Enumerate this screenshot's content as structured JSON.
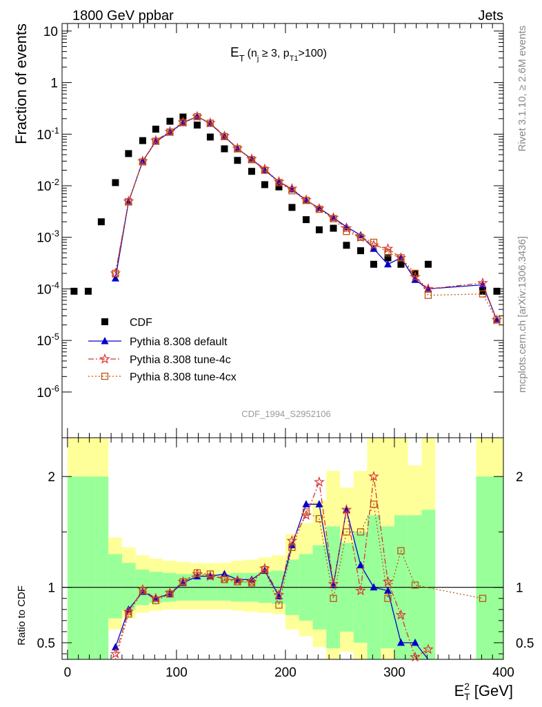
{
  "header": {
    "left": "1800 GeV ppbar",
    "right": "Jets"
  },
  "side": {
    "top": "Rivet 3.1.10, ≥ 2.6M events",
    "bottom": "mcplots.cern.ch [arXiv:1306.3436]"
  },
  "analysis_id": "CDF_1994_S2952106",
  "colors": {
    "cdf": "#000000",
    "default": "#0000cc",
    "tune4c": "#dd3333",
    "tune4cx": "#bb5511",
    "band_inner": "#99ff99",
    "band_outer": "#ffff99"
  },
  "chart_data": [
    {
      "type": "scatter",
      "panel": "main",
      "title": "E_T (n_j ≥ 3, p_T1 >100)",
      "title_parts": {
        "E": "E",
        "T": "T",
        "open": "(n",
        "j": "j",
        "mid": " ≥ 3, p",
        "T1": "T1",
        "close": ">100)"
      },
      "xlabel": "",
      "ylabel": "Fraction of events",
      "yscale": "log",
      "xlim": [
        -5,
        400
      ],
      "ylim": [
        1.3e-07,
        14
      ],
      "ytick_labels": [
        "10^-6",
        "10^-5",
        "10^-4",
        "10^-3",
        "10^-2",
        "10^-1",
        "1",
        "10"
      ],
      "legend_position": "lower-left",
      "series": [
        {
          "name": "CDF",
          "marker": "square",
          "x": [
            6,
            19,
            31,
            44,
            56,
            69,
            81,
            94,
            106,
            119,
            131,
            144,
            156,
            169,
            181,
            194,
            206,
            219,
            231,
            244,
            256,
            269,
            281,
            294,
            306,
            319,
            331,
            381,
            394
          ],
          "y": [
            9e-05,
            9e-05,
            0.002,
            0.0115,
            0.042,
            0.075,
            0.125,
            0.178,
            0.215,
            0.15,
            0.088,
            0.052,
            0.031,
            0.019,
            0.0105,
            0.0095,
            0.0038,
            0.0022,
            0.0014,
            0.0015,
            0.0007,
            0.00055,
            0.0003,
            0.0004,
            0.0003,
            0.0002,
            0.0003,
            9e-05,
            9e-05
          ]
        },
        {
          "name": "Pythia 8.308 default",
          "marker": "triangle",
          "x": [
            44,
            56,
            69,
            81,
            94,
            106,
            119,
            131,
            144,
            156,
            169,
            181,
            194,
            206,
            219,
            231,
            244,
            256,
            269,
            281,
            294,
            306,
            319,
            331,
            381,
            394
          ],
          "y": [
            0.00016,
            0.0048,
            0.03,
            0.072,
            0.108,
            0.165,
            0.22,
            0.16,
            0.09,
            0.052,
            0.033,
            0.02,
            0.012,
            0.0085,
            0.0052,
            0.0037,
            0.0024,
            0.0016,
            0.0011,
            0.0006,
            0.0003,
            0.0004,
            0.00015,
            0.0001,
            0.00012,
            2.5e-05
          ]
        },
        {
          "name": "Pythia 8.308 tune-4c",
          "marker": "star",
          "x": [
            44,
            56,
            69,
            81,
            94,
            106,
            119,
            131,
            144,
            156,
            169,
            181,
            194,
            206,
            219,
            231,
            244,
            256,
            269,
            281,
            294,
            306,
            319,
            331,
            381,
            394
          ],
          "y": [
            0.0002,
            0.005,
            0.03,
            0.075,
            0.112,
            0.17,
            0.22,
            0.165,
            0.092,
            0.053,
            0.033,
            0.021,
            0.012,
            0.0088,
            0.0053,
            0.0036,
            0.0024,
            0.0015,
            0.001,
            0.0007,
            0.0006,
            0.0004,
            0.00017,
            0.0001,
            0.00013,
            2.5e-05
          ]
        },
        {
          "name": "Pythia 8.308 tune-4cx",
          "marker": "open-square",
          "x": [
            44,
            56,
            69,
            81,
            94,
            106,
            119,
            131,
            144,
            156,
            169,
            181,
            194,
            206,
            219,
            231,
            244,
            256,
            269,
            281,
            294,
            306,
            319,
            331,
            381,
            394
          ],
          "y": [
            0.0002,
            0.0049,
            0.029,
            0.073,
            0.11,
            0.168,
            0.218,
            0.163,
            0.09,
            0.052,
            0.032,
            0.02,
            0.0115,
            0.008,
            0.0052,
            0.0035,
            0.0023,
            0.0013,
            0.001,
            0.0008,
            0.0005,
            0.0004,
            0.0002,
            7.5e-05,
            8e-05,
            2.5e-05
          ]
        }
      ]
    },
    {
      "type": "line",
      "panel": "ratio",
      "xlabel": "E_T^2 [GeV]",
      "xlabel_parts": {
        "E": "E",
        "T": "T",
        "sup": "2",
        "unit": " [GeV]"
      },
      "ylabel": "Ratio to CDF",
      "xlim": [
        -5,
        400
      ],
      "ylim": [
        0.35,
        2.35
      ],
      "xtick_labels": [
        "0",
        "100",
        "200",
        "300",
        "400"
      ],
      "ytick_labels": [
        "0.5",
        "1",
        "2"
      ],
      "bands": {
        "edges": [
          0,
          25,
          37.5,
          50,
          62.5,
          75,
          87.5,
          100,
          112.5,
          125,
          137.5,
          150,
          162.5,
          175,
          187.5,
          200,
          212.5,
          225,
          237.5,
          250,
          262.5,
          275,
          287.5,
          300,
          312.5,
          325,
          337.5,
          375,
          400
        ],
        "inner": [
          [
            0.35,
            2.0
          ],
          [
            0.35,
            2.0
          ],
          [
            0.72,
            1.3
          ],
          [
            0.8,
            1.22
          ],
          [
            0.84,
            1.16
          ],
          [
            0.86,
            1.14
          ],
          [
            0.87,
            1.13
          ],
          [
            0.88,
            1.12
          ],
          [
            0.88,
            1.12
          ],
          [
            0.88,
            1.12
          ],
          [
            0.88,
            1.12
          ],
          [
            0.87,
            1.13
          ],
          [
            0.87,
            1.13
          ],
          [
            0.86,
            1.14
          ],
          [
            0.85,
            1.15
          ],
          [
            0.75,
            1.25
          ],
          [
            0.7,
            1.3
          ],
          [
            0.62,
            1.38
          ],
          [
            0.45,
            1.55
          ],
          [
            0.6,
            1.4
          ],
          [
            0.5,
            1.5
          ],
          [
            0.35,
            1.65
          ],
          [
            0.45,
            1.55
          ],
          [
            0.35,
            1.65
          ],
          [
            0.35,
            1.65
          ],
          [
            0.35,
            1.7
          ],
          [
            null,
            null
          ],
          [
            0.35,
            2.0
          ]
        ],
        "outer": [
          [
            0.35,
            2.35
          ],
          [
            0.35,
            2.35
          ],
          [
            0.62,
            1.45
          ],
          [
            0.72,
            1.36
          ],
          [
            0.77,
            1.29
          ],
          [
            0.79,
            1.26
          ],
          [
            0.8,
            1.24
          ],
          [
            0.8,
            1.23
          ],
          [
            0.8,
            1.22
          ],
          [
            0.8,
            1.22
          ],
          [
            0.8,
            1.22
          ],
          [
            0.79,
            1.24
          ],
          [
            0.78,
            1.25
          ],
          [
            0.77,
            1.27
          ],
          [
            0.76,
            1.29
          ],
          [
            0.62,
            1.48
          ],
          [
            0.56,
            1.58
          ],
          [
            0.46,
            1.78
          ],
          [
            0.35,
            2.05
          ],
          [
            0.42,
            1.9
          ],
          [
            0.35,
            2.05
          ],
          [
            0.35,
            2.35
          ],
          [
            0.35,
            2.35
          ],
          [
            0.35,
            2.35
          ],
          [
            0.35,
            2.1
          ],
          [
            0.35,
            2.35
          ],
          [
            null,
            null
          ],
          [
            0.35,
            2.35
          ]
        ]
      },
      "series": [
        {
          "name": "Pythia 8.308 default",
          "x": [
            44,
            56,
            69,
            81,
            94,
            106,
            119,
            131,
            144,
            156,
            169,
            181,
            194,
            206,
            219,
            231,
            244,
            256,
            269,
            281,
            294,
            306,
            319,
            331
          ],
          "y": [
            0.46,
            0.8,
            0.96,
            0.9,
            0.94,
            1.04,
            1.1,
            1.1,
            1.12,
            1.07,
            1.07,
            1.15,
            0.92,
            1.38,
            1.75,
            1.75,
            1.02,
            1.7,
            1.2,
            1.0,
            0.97,
            0.5,
            0.5,
            0.33
          ]
        },
        {
          "name": "Pythia 8.308 tune-4c",
          "x": [
            44,
            56,
            69,
            81,
            94,
            106,
            119,
            131,
            144,
            156,
            169,
            181,
            194,
            206,
            219,
            231,
            244,
            256,
            269,
            281,
            294,
            306,
            319,
            331
          ],
          "y": [
            0.4,
            0.78,
            0.98,
            0.9,
            0.95,
            1.05,
            1.12,
            1.1,
            1.08,
            1.06,
            1.05,
            1.17,
            0.93,
            1.42,
            1.65,
            1.95,
            1.03,
            1.7,
            0.97,
            2.0,
            1.05,
            0.75,
            0.37,
            0.44
          ]
        },
        {
          "name": "Pythia 8.308 tune-4cx",
          "x": [
            44,
            56,
            69,
            81,
            94,
            106,
            119,
            131,
            144,
            156,
            169,
            181,
            194,
            206,
            219,
            231,
            244,
            256,
            269,
            281,
            294,
            306,
            319,
            381
          ],
          "y": [
            0.34,
            0.76,
            0.97,
            0.88,
            0.94,
            1.05,
            1.13,
            1.12,
            1.07,
            1.05,
            1.04,
            1.16,
            0.84,
            1.36,
            1.68,
            1.62,
            0.9,
            1.5,
            1.5,
            1.75,
            0.9,
            1.33,
            1.02,
            0.9
          ]
        }
      ]
    }
  ]
}
